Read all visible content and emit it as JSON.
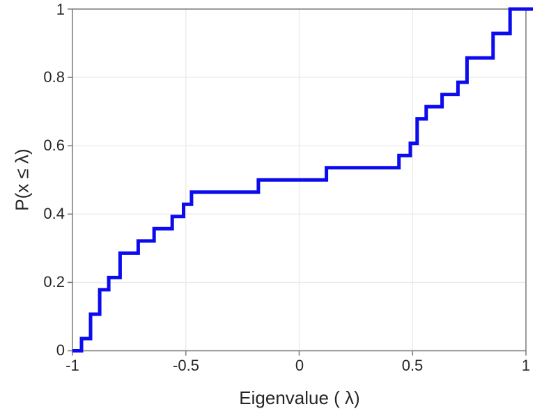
{
  "chart_data": {
    "type": "line",
    "subtype": "ecdf-step",
    "title": "",
    "xlabel": "Eigenvalue ( λ)",
    "ylabel": "P(x ≤ λ)",
    "xlim": [
      -1,
      1
    ],
    "ylim": [
      0,
      1
    ],
    "grid": true,
    "legend": "none",
    "n_points": 28,
    "x_tick_values": [
      -1,
      -0.5,
      0,
      0.5,
      1
    ],
    "x_tick_labels": [
      "-1",
      "-0.5",
      "0",
      "0.5",
      "1"
    ],
    "y_tick_values": [
      0,
      0.2,
      0.4,
      0.6,
      0.8,
      1
    ],
    "y_tick_labels": [
      "0",
      "0.2",
      "0.4",
      "0.6",
      "0.8",
      "1"
    ],
    "line_color": "#0b0bee",
    "line_width": 5,
    "grid_color": "#ebebeb",
    "spine_color": "#808080",
    "tick_color": "#808080",
    "label_color": "#262626",
    "cdf_points": [
      [
        -1.0,
        0.0
      ],
      [
        -0.96,
        0.0357
      ],
      [
        -0.92,
        0.1071
      ],
      [
        -0.88,
        0.1786
      ],
      [
        -0.84,
        0.2143
      ],
      [
        -0.79,
        0.2857
      ],
      [
        -0.71,
        0.3214
      ],
      [
        -0.64,
        0.3571
      ],
      [
        -0.56,
        0.3929
      ],
      [
        -0.51,
        0.4286
      ],
      [
        -0.475,
        0.4643
      ],
      [
        -0.18,
        0.5
      ],
      [
        0.12,
        0.5357
      ],
      [
        0.44,
        0.5714
      ],
      [
        0.49,
        0.6071
      ],
      [
        0.52,
        0.6786
      ],
      [
        0.56,
        0.7143
      ],
      [
        0.63,
        0.75
      ],
      [
        0.7,
        0.7857
      ],
      [
        0.74,
        0.8571
      ],
      [
        0.855,
        0.9286
      ],
      [
        0.93,
        1.0
      ],
      [
        1.0,
        1.0
      ]
    ]
  }
}
